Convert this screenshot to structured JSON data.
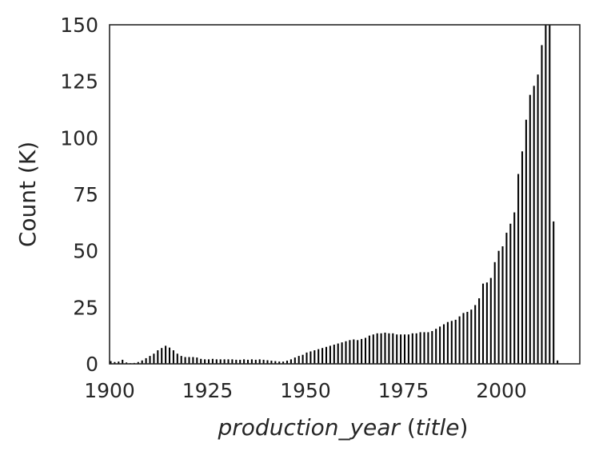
{
  "chart_data": {
    "type": "bar",
    "xlabel": {
      "field": "production_year",
      "table": "title"
    },
    "ylabel": "Count (K)",
    "xlim": [
      1900,
      2020
    ],
    "ylim": [
      0,
      150
    ],
    "x_ticks": [
      "1900",
      "1925",
      "1950",
      "1975",
      "2000"
    ],
    "y_ticks": [
      "0",
      "25",
      "50",
      "75",
      "100",
      "125",
      "150"
    ],
    "grid": false,
    "bar_color": "#000000",
    "x": [
      1900,
      1901,
      1902,
      1903,
      1904,
      1905,
      1906,
      1907,
      1908,
      1909,
      1910,
      1911,
      1912,
      1913,
      1914,
      1915,
      1916,
      1917,
      1918,
      1919,
      1920,
      1921,
      1922,
      1923,
      1924,
      1925,
      1926,
      1927,
      1928,
      1929,
      1930,
      1931,
      1932,
      1933,
      1934,
      1935,
      1936,
      1937,
      1938,
      1939,
      1940,
      1941,
      1942,
      1943,
      1944,
      1945,
      1946,
      1947,
      1948,
      1949,
      1950,
      1951,
      1952,
      1953,
      1954,
      1955,
      1956,
      1957,
      1958,
      1959,
      1960,
      1961,
      1962,
      1963,
      1964,
      1965,
      1966,
      1967,
      1968,
      1969,
      1970,
      1971,
      1972,
      1973,
      1974,
      1975,
      1976,
      1977,
      1978,
      1979,
      1980,
      1981,
      1982,
      1983,
      1984,
      1985,
      1986,
      1987,
      1988,
      1989,
      1990,
      1991,
      1992,
      1993,
      1994,
      1995,
      1996,
      1997,
      1998,
      1999,
      2000,
      2001,
      2002,
      2003,
      2004,
      2005,
      2006,
      2007,
      2008,
      2009,
      2010,
      2011,
      2012,
      2013,
      2014
    ],
    "values": [
      1.2,
      0.8,
      1.0,
      1.8,
      0.6,
      0.3,
      0.4,
      0.8,
      1.5,
      2.5,
      3.5,
      4.5,
      6.0,
      7.0,
      8.0,
      7.2,
      6.0,
      4.5,
      3.5,
      3.0,
      3.0,
      3.0,
      2.8,
      2.2,
      2.0,
      2.0,
      2.2,
      2.0,
      2.0,
      2.0,
      2.0,
      2.0,
      1.8,
      1.8,
      2.0,
      1.8,
      2.0,
      1.8,
      2.0,
      1.8,
      1.6,
      1.4,
      1.2,
      1.0,
      1.0,
      1.4,
      2.0,
      2.8,
      3.5,
      4.0,
      5.0,
      5.5,
      6.0,
      6.5,
      7.0,
      7.5,
      8.0,
      8.5,
      9.0,
      9.5,
      10.0,
      10.5,
      10.8,
      10.5,
      11.0,
      11.5,
      12.5,
      13.0,
      13.5,
      13.5,
      13.8,
      13.5,
      13.5,
      13.0,
      13.0,
      13.0,
      13.0,
      13.5,
      13.5,
      14.0,
      14.0,
      14.0,
      14.5,
      15.5,
      16.5,
      17.5,
      18.5,
      19.0,
      19.5,
      21.0,
      22.5,
      23.0,
      24.0,
      26.0,
      29.0,
      35.5,
      36.0,
      38.0,
      45.0,
      50.0,
      52.0,
      58.0,
      62.0,
      67.0,
      84.0,
      94.0,
      108.0,
      119.0,
      123.0,
      128.0,
      141.0,
      150.0,
      150.0,
      63.0,
      1.5
    ]
  }
}
